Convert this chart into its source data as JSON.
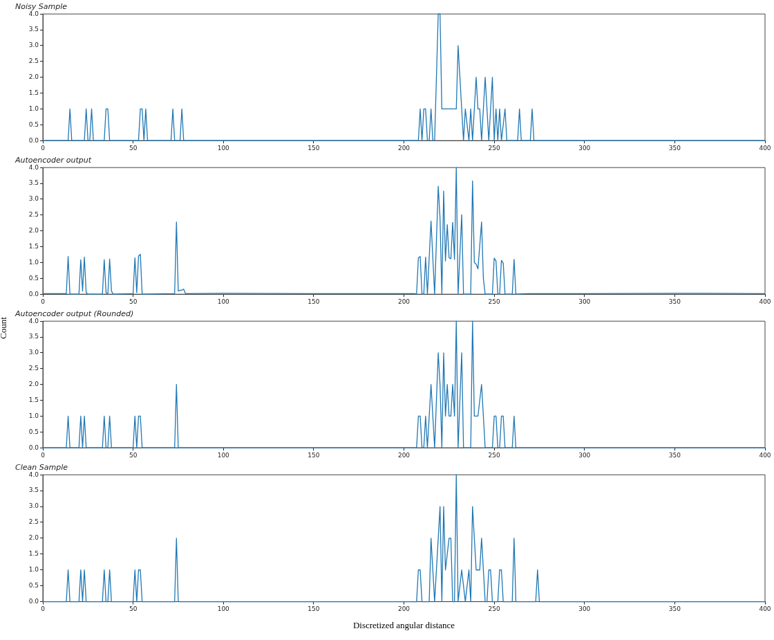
{
  "chart_data": [
    {
      "type": "line",
      "title": "Noisy Sample",
      "xlim": [
        0,
        400
      ],
      "xticks": [
        0,
        50,
        100,
        150,
        200,
        250,
        300,
        350,
        400
      ],
      "ylim": [
        0,
        4
      ],
      "yticks": [
        {
          "value": 0,
          "label": "0.0"
        },
        {
          "value": 0.5,
          "label": "0.5"
        },
        {
          "value": 1,
          "label": "1.0"
        },
        {
          "value": 1.5,
          "label": "1.5"
        },
        {
          "value": 2,
          "label": "2.0"
        },
        {
          "value": 2.5,
          "label": "2.5"
        },
        {
          "value": 3,
          "label": "3.0"
        },
        {
          "value": 3.5,
          "label": "3.5"
        },
        {
          "value": 4,
          "label": "4.0"
        }
      ],
      "grid": false,
      "legend": false,
      "marker": "none",
      "line_style": "solid",
      "series": [
        {
          "color": "#1f77b4",
          "x": [
            0,
            14,
            15,
            16,
            23,
            24,
            25,
            26,
            27,
            28,
            34,
            35,
            36,
            37,
            53,
            54,
            55,
            56,
            57,
            58,
            71,
            72,
            73,
            76,
            77,
            78,
            208,
            209,
            210,
            211,
            212,
            213,
            214,
            215,
            216,
            217,
            219,
            220,
            221,
            229,
            230,
            233,
            234,
            236,
            237,
            238,
            240,
            241,
            242,
            243,
            245,
            247,
            249,
            250,
            251,
            252,
            253,
            254,
            256,
            257,
            263,
            264,
            265,
            270,
            271,
            272,
            400
          ],
          "values": [
            0,
            0,
            1,
            0,
            0,
            1,
            0,
            0,
            1,
            0,
            0,
            1,
            1,
            0,
            0,
            1,
            1,
            0,
            1,
            0,
            0,
            1,
            0,
            0,
            1,
            0,
            0,
            1,
            0,
            1,
            1,
            0,
            0,
            1,
            0,
            0,
            4,
            4,
            1,
            1,
            3,
            0,
            1,
            0,
            1,
            0,
            2,
            1,
            1,
            0,
            2,
            0,
            2,
            0,
            1,
            0,
            1,
            0,
            1,
            0,
            0,
            1,
            0,
            0,
            1,
            0,
            0
          ]
        }
      ]
    },
    {
      "type": "line",
      "title": "Autoencoder output",
      "xlim": [
        0,
        400
      ],
      "xticks": [
        0,
        50,
        100,
        150,
        200,
        250,
        300,
        350,
        400
      ],
      "ylim": [
        0,
        4
      ],
      "yticks": [
        {
          "value": 0,
          "label": "0.0"
        },
        {
          "value": 0.5,
          "label": "0.5"
        },
        {
          "value": 1,
          "label": "1.0"
        },
        {
          "value": 1.5,
          "label": "1.5"
        },
        {
          "value": 2,
          "label": "2.0"
        },
        {
          "value": 2.5,
          "label": "2.5"
        },
        {
          "value": 3,
          "label": "3.0"
        },
        {
          "value": 3.5,
          "label": "3.5"
        },
        {
          "value": 4,
          "label": "4.0"
        }
      ],
      "grid": false,
      "legend": false,
      "marker": "none",
      "line_style": "solid",
      "series": [
        {
          "color": "#1f77b4",
          "x": [
            0,
            13,
            14,
            15,
            20,
            21,
            22,
            23,
            24,
            25,
            33,
            34,
            35,
            36,
            37,
            38,
            39,
            50,
            51,
            52,
            53,
            54,
            55,
            73,
            74,
            75,
            76,
            77,
            78,
            79,
            100,
            150,
            206,
            207,
            208,
            209,
            210,
            211,
            212,
            213,
            215,
            217,
            219,
            220,
            221,
            222,
            223,
            224,
            225,
            226,
            227,
            228,
            229,
            230,
            232,
            233,
            237,
            238,
            239,
            240,
            241,
            243,
            244,
            245,
            249,
            250,
            251,
            252,
            253,
            254,
            255,
            256,
            260,
            261,
            262,
            270,
            300,
            350,
            400
          ],
          "values": [
            0.02,
            0.02,
            1.19,
            0,
            0,
            1.09,
            0.1,
            1.17,
            0.05,
            0,
            0,
            1.09,
            0.05,
            0,
            1.11,
            0.1,
            0,
            0.02,
            1.15,
            0.05,
            1.2,
            1.26,
            0,
            0.02,
            2.28,
            0.1,
            0.12,
            0.13,
            0.16,
            0.02,
            0.03,
            0.02,
            0.02,
            0,
            1.15,
            1.19,
            0,
            0,
            1.17,
            0,
            2.31,
            0,
            3.41,
            2.4,
            0,
            3.26,
            1.05,
            2.2,
            1.15,
            1.12,
            2.27,
            1.1,
            4,
            0,
            2.51,
            0,
            0,
            3.58,
            1.0,
            0.95,
            0.8,
            2.28,
            0.5,
            0,
            0,
            1.14,
            1.05,
            0,
            0,
            1.07,
            0.98,
            0,
            0,
            1.1,
            0,
            0.02,
            0.02,
            0.03,
            0.02
          ]
        }
      ]
    },
    {
      "type": "line",
      "title": "Autoencoder output (Rounded)",
      "ylabel": "Count",
      "xlim": [
        0,
        400
      ],
      "xticks": [
        0,
        50,
        100,
        150,
        200,
        250,
        300,
        350,
        400
      ],
      "ylim": [
        0,
        4
      ],
      "yticks": [
        {
          "value": 0,
          "label": "0.0"
        },
        {
          "value": 0.5,
          "label": "0.5"
        },
        {
          "value": 1,
          "label": "1.0"
        },
        {
          "value": 1.5,
          "label": "1.5"
        },
        {
          "value": 2,
          "label": "2.0"
        },
        {
          "value": 2.5,
          "label": "2.5"
        },
        {
          "value": 3,
          "label": "3.0"
        },
        {
          "value": 3.5,
          "label": "3.5"
        },
        {
          "value": 4,
          "label": "4.0"
        }
      ],
      "grid": false,
      "legend": false,
      "marker": "none",
      "line_style": "solid",
      "series": [
        {
          "color": "#1f77b4",
          "x": [
            0,
            13,
            14,
            15,
            20,
            21,
            22,
            23,
            24,
            33,
            34,
            35,
            36,
            37,
            38,
            50,
            51,
            52,
            53,
            54,
            55,
            73,
            74,
            75,
            207,
            208,
            209,
            210,
            211,
            212,
            213,
            215,
            217,
            219,
            220,
            221,
            222,
            223,
            224,
            225,
            226,
            227,
            228,
            229,
            230,
            232,
            233,
            237,
            238,
            239,
            240,
            241,
            243,
            245,
            249,
            250,
            251,
            252,
            253,
            254,
            255,
            256,
            260,
            261,
            262,
            400
          ],
          "values": [
            0,
            0,
            1,
            0,
            0,
            1,
            0,
            1,
            0,
            0,
            1,
            0,
            0,
            1,
            0,
            0,
            1,
            0,
            1,
            1,
            0,
            0,
            2,
            0,
            0,
            1,
            1,
            0,
            0,
            1,
            0,
            2,
            0,
            3,
            2,
            0,
            3,
            1,
            2,
            1,
            1,
            2,
            1,
            4,
            0,
            3,
            0,
            0,
            4,
            1,
            1,
            1,
            2,
            0,
            0,
            1,
            1,
            0,
            0,
            1,
            1,
            0,
            0,
            1,
            0,
            0
          ]
        }
      ]
    },
    {
      "type": "line",
      "title": "Clean Sample",
      "xlabel": "Discretized angular distance",
      "xlim": [
        0,
        400
      ],
      "xticks": [
        0,
        50,
        100,
        150,
        200,
        250,
        300,
        350,
        400
      ],
      "ylim": [
        0,
        4
      ],
      "yticks": [
        {
          "value": 0,
          "label": "0.0"
        },
        {
          "value": 0.5,
          "label": "0.5"
        },
        {
          "value": 1,
          "label": "1.0"
        },
        {
          "value": 1.5,
          "label": "1.5"
        },
        {
          "value": 2,
          "label": "2.0"
        },
        {
          "value": 2.5,
          "label": "2.5"
        },
        {
          "value": 3,
          "label": "3.0"
        },
        {
          "value": 3.5,
          "label": "3.5"
        },
        {
          "value": 4,
          "label": "4.0"
        }
      ],
      "grid": false,
      "legend": false,
      "marker": "none",
      "line_style": "solid",
      "series": [
        {
          "color": "#1f77b4",
          "x": [
            0,
            13,
            14,
            15,
            20,
            21,
            22,
            23,
            24,
            33,
            34,
            35,
            36,
            37,
            38,
            50,
            51,
            52,
            53,
            54,
            55,
            73,
            74,
            75,
            207,
            208,
            209,
            210,
            214,
            215,
            217,
            220,
            221,
            222,
            223,
            225,
            226,
            227,
            228,
            229,
            230,
            232,
            234,
            236,
            237,
            238,
            240,
            241,
            242,
            243,
            245,
            246,
            247,
            248,
            249,
            252,
            253,
            254,
            255,
            260,
            261,
            262,
            273,
            274,
            275,
            400
          ],
          "values": [
            0,
            0,
            1,
            0,
            0,
            1,
            0,
            1,
            0,
            0,
            1,
            0,
            0,
            1,
            0,
            0,
            1,
            0,
            1,
            1,
            0,
            0,
            2,
            0,
            0,
            1,
            1,
            0,
            0,
            2,
            0,
            3,
            0,
            3,
            1,
            2,
            2,
            0,
            0,
            4,
            0,
            1,
            0,
            1,
            0,
            3,
            1,
            1,
            1,
            2,
            0,
            0,
            1,
            1,
            0,
            0,
            1,
            1,
            0,
            0,
            2,
            0,
            0,
            1,
            0,
            0
          ]
        }
      ]
    }
  ]
}
